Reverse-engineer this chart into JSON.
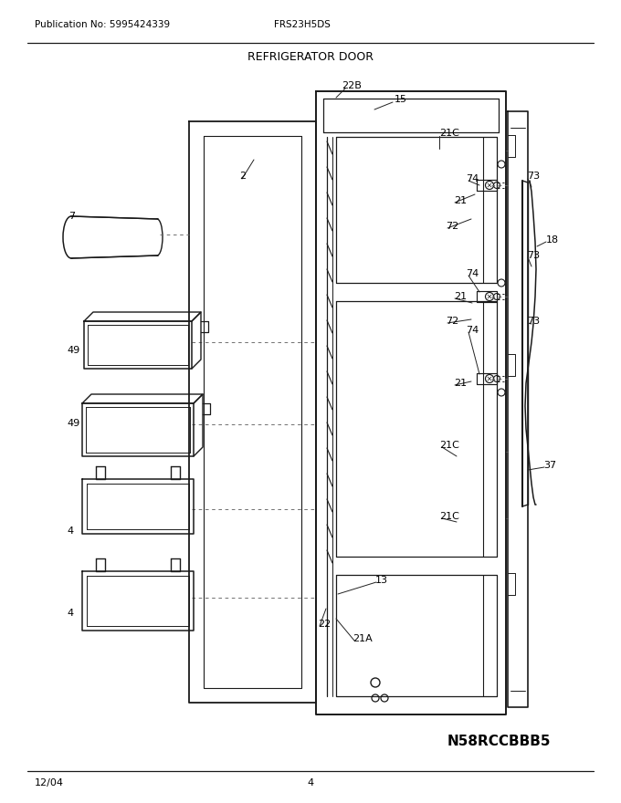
{
  "title": "REFRIGERATOR DOOR",
  "pub_no": "Publication No: 5995424339",
  "model": "FRS23H5DS",
  "date": "12/04",
  "page": "4",
  "part_id": "N58RCCBBB5",
  "bg_color": "#ffffff"
}
